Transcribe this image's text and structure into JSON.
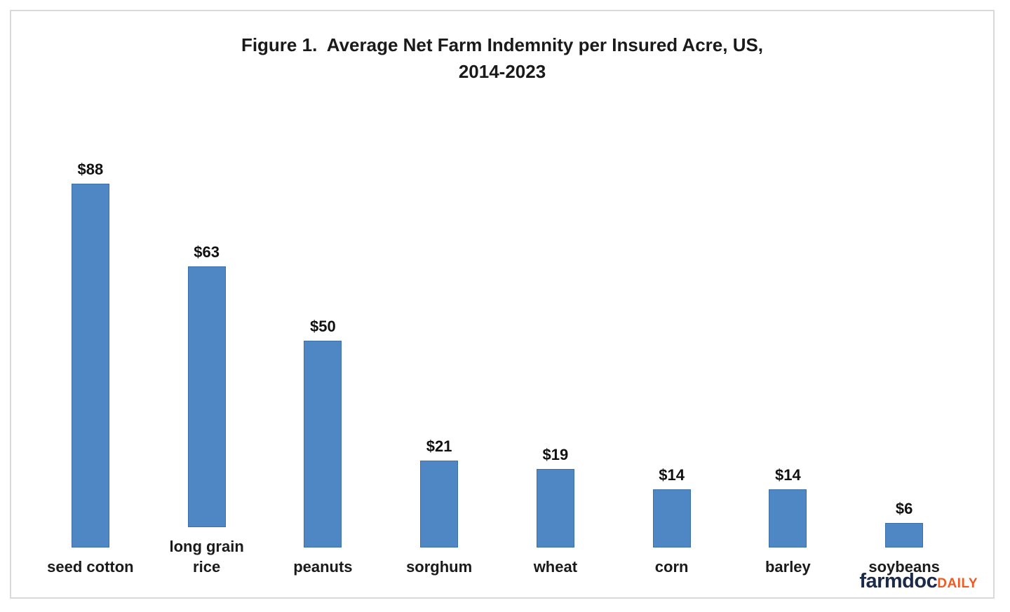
{
  "header": {
    "line1": "Figure 1.  Average Net Farm Indemnity per Insured Acre, US,",
    "line2": "2014-2023"
  },
  "chart_data": {
    "type": "bar",
    "title": "Figure 1. Average Net Farm Indemnity per Insured Acre, US, 2014-2023",
    "categories": [
      "seed cotton",
      "long grain rice",
      "peanuts",
      "sorghum",
      "wheat",
      "corn",
      "barley",
      "soybeans"
    ],
    "values": [
      88,
      63,
      50,
      21,
      19,
      14,
      14,
      6
    ],
    "data_labels": [
      "$88",
      "$63",
      "$50",
      "$21",
      "$19",
      "$14",
      "$14",
      "$6"
    ],
    "category_display": [
      "seed cotton",
      "long grain\nrice",
      "peanuts",
      "sorghum",
      "wheat",
      "corn",
      "barley",
      "soybeans"
    ],
    "xlabel": "",
    "ylabel": "",
    "ylim": [
      0,
      95
    ],
    "grid": false,
    "legend": "none",
    "bar_color": "#4F86C4",
    "bar_border_color": "#3D6FA8",
    "label_color": "#111111"
  },
  "branding": {
    "logo_main": "farmdoc",
    "logo_suffix": "DAILY",
    "logo_main_color": "#1B2A4A",
    "logo_suffix_color": "#F05A22"
  }
}
